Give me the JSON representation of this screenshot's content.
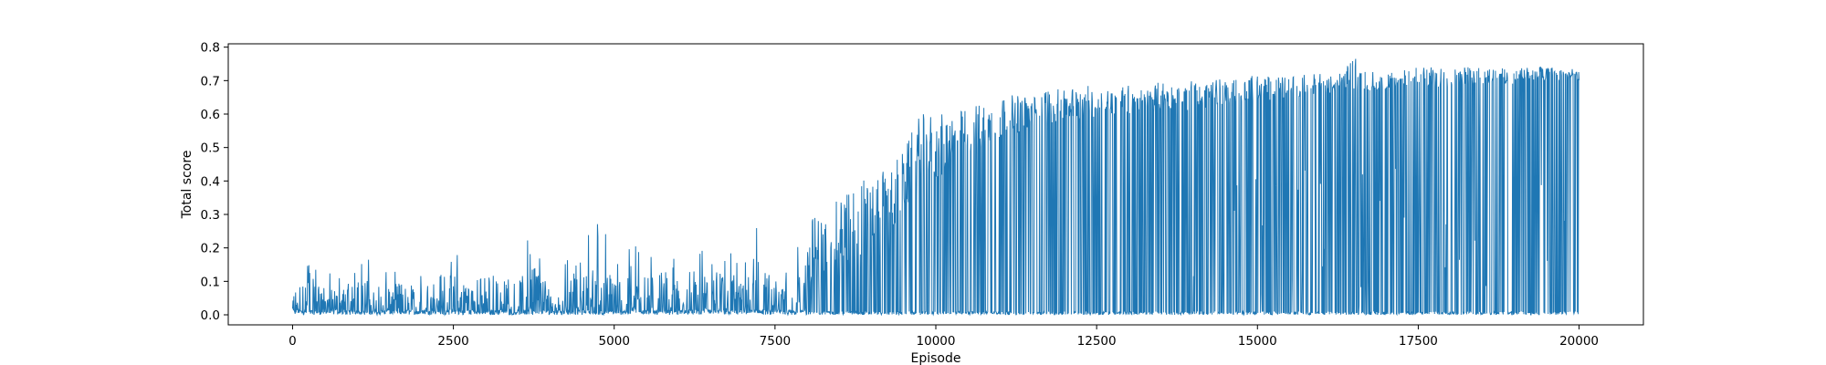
{
  "chart_data": {
    "type": "line",
    "title": "",
    "xlabel": "Episode",
    "ylabel": "Total score",
    "xlim": [
      -1000,
      21000
    ],
    "ylim": [
      -0.03,
      0.81
    ],
    "xticks": [
      0,
      2500,
      5000,
      7500,
      10000,
      12500,
      15000,
      17500,
      20000
    ],
    "yticks": [
      0.0,
      0.1,
      0.2,
      0.3,
      0.4,
      0.5,
      0.6,
      0.7,
      0.8
    ],
    "xtick_labels": [
      "0",
      "2500",
      "5000",
      "7500",
      "10000",
      "12500",
      "15000",
      "17500",
      "20000"
    ],
    "ytick_labels": [
      "0.0",
      "0.1",
      "0.2",
      "0.3",
      "0.4",
      "0.5",
      "0.6",
      "0.7",
      "0.8"
    ],
    "grid": false,
    "legend": "none",
    "series": [
      {
        "color": "#1f77b4",
        "x": [
          0,
          250,
          500,
          750,
          1000,
          1250,
          1500,
          1750,
          2000,
          2250,
          2500,
          2750,
          3000,
          3250,
          3500,
          3750,
          4000,
          4250,
          4500,
          4750,
          5000,
          5250,
          5500,
          5750,
          6000,
          6250,
          6500,
          6750,
          7000,
          7250,
          7500,
          7750,
          8000,
          8250,
          8500,
          8750,
          9000,
          9250,
          9500,
          9750,
          10000,
          10250,
          10500,
          10750,
          11000,
          11250,
          11500,
          11750,
          12000,
          12250,
          12500,
          12750,
          13000,
          13250,
          13500,
          13750,
          14000,
          14250,
          14500,
          14750,
          15000,
          15250,
          15500,
          15750,
          16000,
          16250,
          16500,
          16750,
          17000,
          17250,
          17500,
          17750,
          18000,
          18250,
          18500,
          18750,
          19000,
          19250,
          19500,
          19750,
          20000
        ],
        "upper": [
          0.1,
          0.25,
          0.13,
          0.12,
          0.2,
          0.16,
          0.15,
          0.17,
          0.13,
          0.21,
          0.2,
          0.16,
          0.2,
          0.21,
          0.17,
          0.27,
          0.15,
          0.17,
          0.2,
          0.32,
          0.18,
          0.21,
          0.22,
          0.21,
          0.15,
          0.17,
          0.22,
          0.21,
          0.15,
          0.28,
          0.17,
          0.21,
          0.3,
          0.29,
          0.35,
          0.42,
          0.4,
          0.44,
          0.49,
          0.6,
          0.6,
          0.6,
          0.62,
          0.64,
          0.65,
          0.66,
          0.65,
          0.68,
          0.67,
          0.69,
          0.68,
          0.68,
          0.69,
          0.67,
          0.7,
          0.68,
          0.7,
          0.7,
          0.71,
          0.71,
          0.72,
          0.71,
          0.71,
          0.72,
          0.72,
          0.72,
          0.77,
          0.73,
          0.72,
          0.73,
          0.74,
          0.74,
          0.74,
          0.75,
          0.74,
          0.74,
          0.73,
          0.75,
          0.74,
          0.74,
          0.73
        ],
        "base": [
          0.0,
          0.01,
          0.01,
          0.01,
          0.01,
          0.01,
          0.01,
          0.01,
          0.01,
          0.02,
          0.02,
          0.02,
          0.02,
          0.02,
          0.02,
          0.02,
          0.02,
          0.02,
          0.03,
          0.03,
          0.03,
          0.03,
          0.03,
          0.03,
          0.03,
          0.03,
          0.04,
          0.05,
          0.06,
          0.07,
          0.07,
          0.08,
          0.09,
          0.11,
          0.14,
          0.17,
          0.2,
          0.24,
          0.3,
          0.35,
          0.4,
          0.44,
          0.48,
          0.5,
          0.52,
          0.54,
          0.56,
          0.57,
          0.58,
          0.58,
          0.59,
          0.6,
          0.6,
          0.6,
          0.61,
          0.61,
          0.61,
          0.62,
          0.63,
          0.63,
          0.64,
          0.64,
          0.65,
          0.65,
          0.66,
          0.66,
          0.67,
          0.67,
          0.67,
          0.68,
          0.68,
          0.68,
          0.68,
          0.69,
          0.69,
          0.69,
          0.69,
          0.7,
          0.7,
          0.7,
          0.7
        ],
        "lower": [
          0.0,
          0.0,
          0.0,
          0.0,
          0.0,
          0.0,
          0.0,
          0.0,
          0.0,
          0.0,
          0.0,
          0.0,
          0.0,
          0.0,
          0.0,
          0.0,
          0.0,
          0.0,
          0.0,
          0.0,
          0.0,
          0.0,
          0.0,
          0.0,
          0.0,
          0.0,
          0.0,
          0.0,
          0.0,
          0.0,
          0.0,
          0.0,
          0.0,
          0.0,
          0.0,
          0.0,
          0.0,
          0.0,
          0.0,
          0.0,
          0.0,
          0.0,
          0.0,
          0.0,
          0.0,
          0.0,
          0.0,
          0.0,
          0.0,
          0.0,
          0.0,
          0.0,
          0.0,
          0.0,
          0.0,
          0.0,
          0.0,
          0.0,
          0.0,
          0.0,
          0.0,
          0.0,
          0.0,
          0.0,
          0.0,
          0.0,
          0.0,
          0.0,
          0.0,
          0.0,
          0.0,
          0.0,
          0.0,
          0.0,
          0.0,
          0.0,
          0.0,
          0.0,
          0.0,
          0.0,
          0.0
        ]
      }
    ]
  }
}
